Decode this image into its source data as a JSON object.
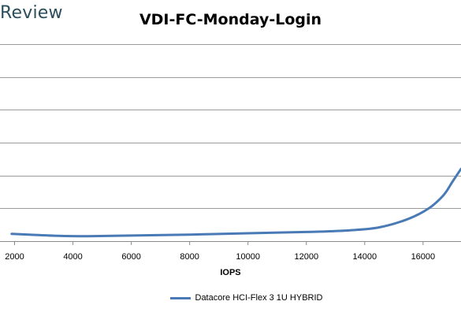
{
  "header": {
    "brand_text": "Review"
  },
  "chart_data": {
    "type": "line",
    "title": "VDI-FC-Monday-Login",
    "xlabel": "IOPS",
    "ylabel": "",
    "x_ticks": [
      2000,
      4000,
      6000,
      8000,
      10000,
      12000,
      14000,
      16000
    ],
    "xlim": [
      1500,
      17300
    ],
    "ylim": [
      0,
      6
    ],
    "y_gridlines": [
      1,
      2,
      3,
      4,
      5,
      6
    ],
    "grid": true,
    "legend_position": "bottom",
    "series": [
      {
        "name": "Datacore HCI-Flex 3 1U HYBRID",
        "color": "#4a7ab5",
        "x": [
          1900,
          2500,
          3500,
          4500,
          6000,
          8000,
          10000,
          11500,
          12500,
          13500,
          14500,
          15500,
          16200,
          16700,
          17000,
          17300
        ],
        "y": [
          0.22,
          0.2,
          0.16,
          0.15,
          0.17,
          0.2,
          0.24,
          0.27,
          0.29,
          0.33,
          0.42,
          0.68,
          1.0,
          1.4,
          1.8,
          2.2
        ]
      }
    ]
  }
}
